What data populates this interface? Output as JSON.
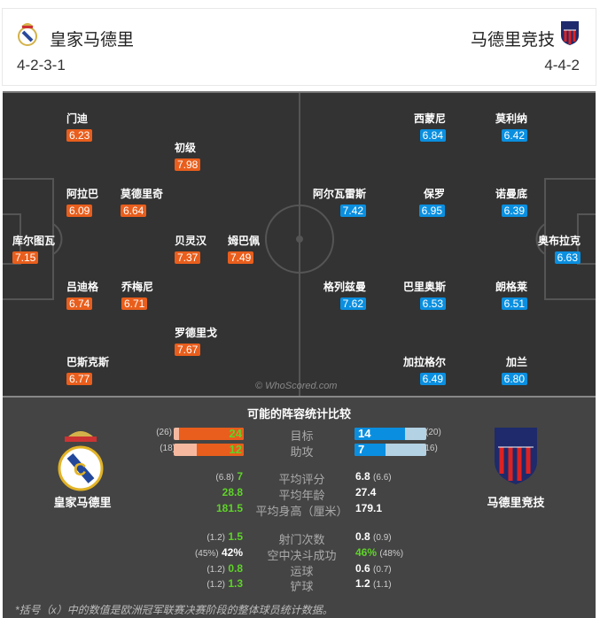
{
  "home": {
    "name": "皇家马德里",
    "formation": "4-2-3-1",
    "color": "#e95e1c",
    "players": [
      {
        "name": "门迪",
        "rating": "6.23"
      },
      {
        "name": "初级",
        "rating": "7.98"
      },
      {
        "name": "阿拉巴",
        "rating": "6.09"
      },
      {
        "name": "莫德里奇",
        "rating": "6.64"
      },
      {
        "name": "库尔图瓦",
        "rating": "7.15"
      },
      {
        "name": "贝灵汉",
        "rating": "7.37"
      },
      {
        "name": "姆巴佩",
        "rating": "7.49"
      },
      {
        "name": "吕迪格",
        "rating": "6.74"
      },
      {
        "name": "乔梅尼",
        "rating": "6.71"
      },
      {
        "name": "罗德里戈",
        "rating": "7.67"
      },
      {
        "name": "巴斯克斯",
        "rating": "6.77"
      }
    ]
  },
  "away": {
    "name": "马德里竞技",
    "formation": "4-4-2",
    "color": "#0a8fe0",
    "players": [
      {
        "name": "西蒙尼",
        "rating": "6.84"
      },
      {
        "name": "莫利纳",
        "rating": "6.42"
      },
      {
        "name": "阿尔瓦雷斯",
        "rating": "7.42"
      },
      {
        "name": "保罗",
        "rating": "6.95"
      },
      {
        "name": "诺曼底",
        "rating": "6.39"
      },
      {
        "name": "奥布拉克",
        "rating": "6.63"
      },
      {
        "name": "格列兹曼",
        "rating": "7.62"
      },
      {
        "name": "巴里奥斯",
        "rating": "6.53"
      },
      {
        "name": "朗格莱",
        "rating": "6.51"
      },
      {
        "name": "加拉格尔",
        "rating": "6.49"
      },
      {
        "name": "加兰",
        "rating": "6.80"
      }
    ]
  },
  "watermark": "© WhoScored.com",
  "stats": {
    "title": "可能的阵容统计比较",
    "goals": {
      "label": "目标",
      "home": "24",
      "home_ref": "(26)",
      "away": "14",
      "away_ref": "(20)"
    },
    "assists": {
      "label": "助攻",
      "home": "12",
      "home_ref": "(18)",
      "away": "7",
      "away_ref": "(16)"
    },
    "rows": [
      {
        "label": "平均评分",
        "home": "7",
        "home_ref": "(6.8)",
        "away": "6.8",
        "away_ref": "(6.6)"
      },
      {
        "label": "平均年龄",
        "home": "28.8",
        "home_ref": "",
        "away": "27.4",
        "away_ref": ""
      },
      {
        "label": "平均身高（厘米）",
        "home": "181.5",
        "home_ref": "",
        "away": "179.1",
        "away_ref": ""
      },
      {
        "label": "射门次数",
        "home": "1.5",
        "home_ref": "(1.2)",
        "away": "0.8",
        "away_ref": "(0.9)"
      },
      {
        "label": "空中决斗成功",
        "home": "42%",
        "home_ref": "(45%)",
        "away": "46%",
        "away_ref": "(48%)"
      },
      {
        "label": "运球",
        "home": "0.8",
        "home_ref": "(1.2)",
        "away": "0.6",
        "away_ref": "(0.7)"
      },
      {
        "label": "铲球",
        "home": "1.3",
        "home_ref": "(1.2)",
        "away": "1.2",
        "away_ref": "(1.1)"
      }
    ],
    "footnote": "*括号（x）中的数值是欧洲冠军联赛决赛阶段的整体球员统计数据。"
  }
}
